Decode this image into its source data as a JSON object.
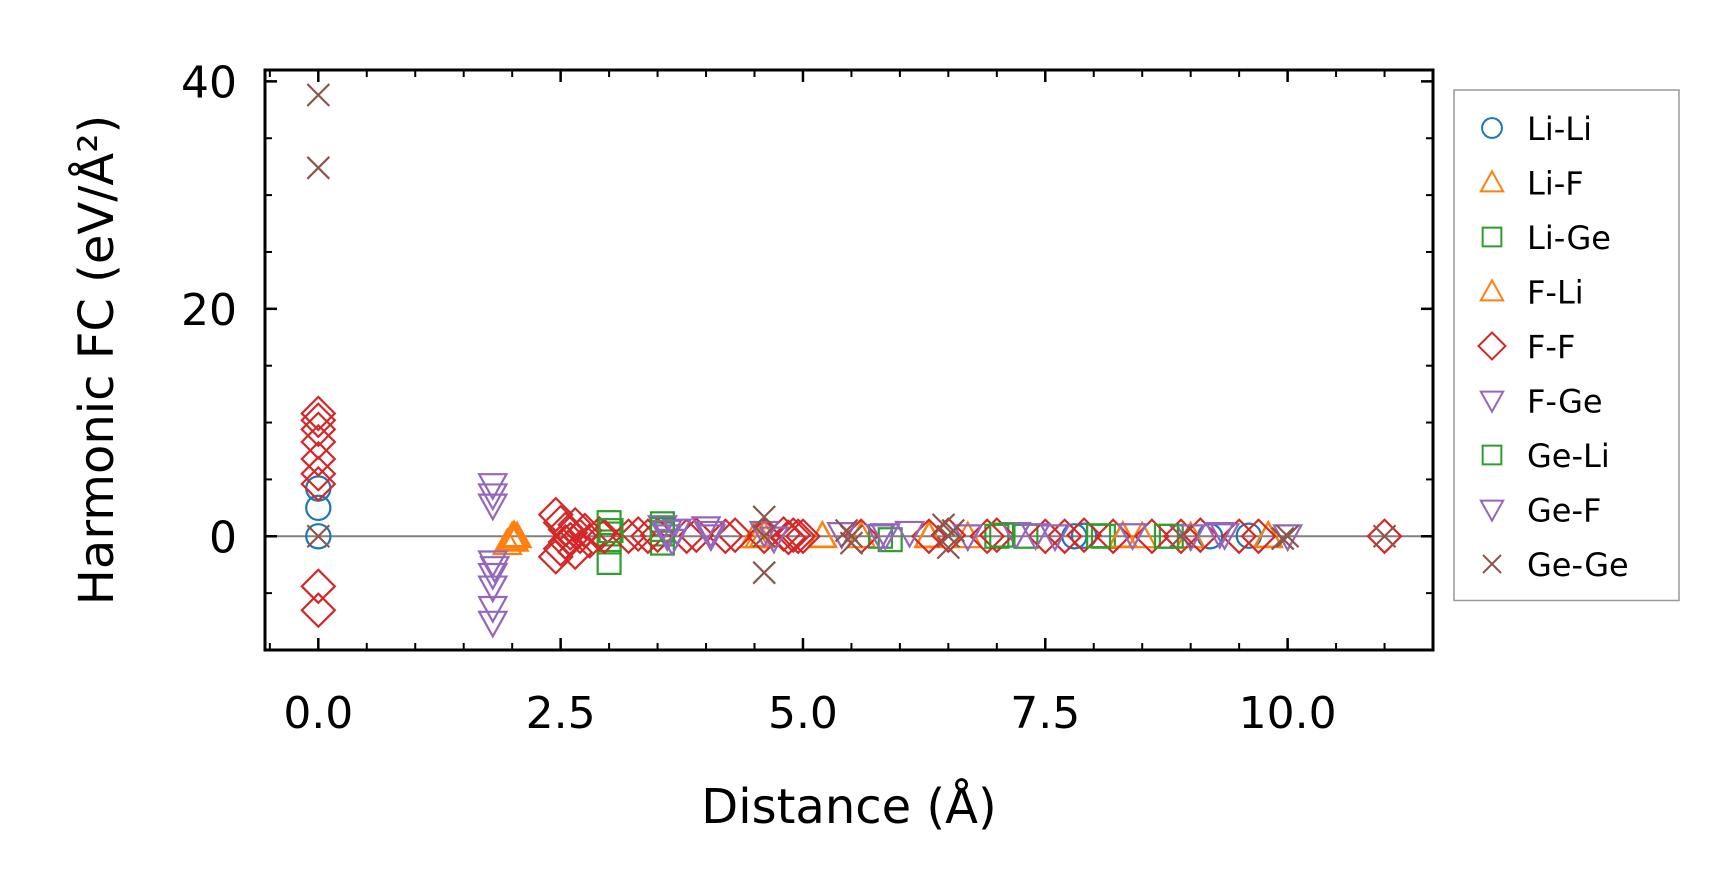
{
  "chart_data": {
    "type": "scatter",
    "title": "",
    "xlabel": "Distance (Å)",
    "ylabel": "Harmonic FC (eV/Å²)",
    "xlim": [
      -0.55,
      11.5
    ],
    "ylim": [
      -10,
      41
    ],
    "xticks": [
      0.0,
      2.5,
      5.0,
      7.5,
      10.0
    ],
    "xtick_labels": [
      "0.0",
      "2.5",
      "5.0",
      "7.5",
      "10.0"
    ],
    "yticks": [
      0,
      20,
      40
    ],
    "ytick_labels": [
      "0",
      "20",
      "40"
    ],
    "grid": false,
    "legend_position": "outside-right",
    "reference_line_y": 0,
    "series": [
      {
        "name": "Li-Li",
        "marker": "circle",
        "color": "#1f77b4",
        "points": [
          [
            0,
            0
          ],
          [
            0,
            2.5
          ],
          [
            0,
            4.2
          ],
          [
            7.8,
            0
          ],
          [
            7.9,
            0.05
          ],
          [
            9.2,
            0
          ],
          [
            9.6,
            0.05
          ]
        ]
      },
      {
        "name": "Li-F",
        "marker": "triangle-up",
        "color": "#ff7f0e",
        "points": [
          [
            1.95,
            -0.6
          ],
          [
            2.0,
            0
          ],
          [
            2.02,
            -0.3
          ],
          [
            2.05,
            0
          ],
          [
            4.5,
            0
          ],
          [
            4.6,
            0.1
          ],
          [
            5.2,
            0
          ],
          [
            5.6,
            0
          ],
          [
            6.3,
            0
          ],
          [
            6.7,
            0
          ],
          [
            8.3,
            0
          ],
          [
            8.5,
            0
          ],
          [
            9.0,
            0
          ],
          [
            9.8,
            0
          ]
        ]
      },
      {
        "name": "Li-Ge",
        "marker": "square",
        "color": "#2ca02c",
        "points": [
          [
            3.0,
            1.2
          ],
          [
            3.0,
            -0.5
          ],
          [
            3.0,
            -2.3
          ],
          [
            3.0,
            0.2
          ],
          [
            3.55,
            1.1
          ],
          [
            3.55,
            -0.6
          ],
          [
            3.55,
            0.2
          ],
          [
            5.8,
            0
          ],
          [
            5.9,
            -0.3
          ],
          [
            7.0,
            0
          ],
          [
            7.3,
            0
          ],
          [
            8.1,
            0
          ],
          [
            8.8,
            0
          ]
        ]
      },
      {
        "name": "F-Li",
        "marker": "triangle-up",
        "color": "#ff7f0e",
        "points": [
          [
            2.0,
            -0.2
          ],
          [
            2.02,
            0.1
          ],
          [
            4.55,
            0
          ],
          [
            5.2,
            0.05
          ],
          [
            6.3,
            0.05
          ],
          [
            8.3,
            0.05
          ],
          [
            9.8,
            0.05
          ]
        ]
      },
      {
        "name": "F-F",
        "marker": "diamond",
        "color": "#d62728",
        "points": [
          [
            0,
            10.8
          ],
          [
            0,
            10.2
          ],
          [
            0,
            9.4
          ],
          [
            0,
            8.3
          ],
          [
            0,
            6.8
          ],
          [
            0,
            5.5
          ],
          [
            0,
            4.6
          ],
          [
            0,
            -4.4
          ],
          [
            0,
            -6.5
          ],
          [
            2.45,
            1.9
          ],
          [
            2.45,
            -1.8
          ],
          [
            2.5,
            1.2
          ],
          [
            2.5,
            -1.1
          ],
          [
            2.55,
            0.6
          ],
          [
            2.55,
            -0.5
          ],
          [
            2.6,
            0.3
          ],
          [
            2.6,
            -0.3
          ],
          [
            2.65,
            1.0
          ],
          [
            2.65,
            -1.4
          ],
          [
            2.7,
            0
          ],
          [
            2.75,
            0.5
          ],
          [
            2.8,
            -0.4
          ],
          [
            2.9,
            0.2
          ],
          [
            2.95,
            0
          ],
          [
            3.2,
            0
          ],
          [
            3.3,
            0.2
          ],
          [
            3.4,
            0
          ],
          [
            3.5,
            0.1
          ],
          [
            3.8,
            0
          ],
          [
            3.9,
            0.1
          ],
          [
            4.2,
            0
          ],
          [
            4.3,
            0.1
          ],
          [
            4.6,
            0
          ],
          [
            4.8,
            0.2
          ],
          [
            4.85,
            -0.1
          ],
          [
            4.9,
            0.1
          ],
          [
            4.95,
            0
          ],
          [
            5.0,
            0
          ],
          [
            5.6,
            0
          ],
          [
            6.3,
            0
          ],
          [
            6.5,
            0.1
          ],
          [
            6.9,
            0
          ],
          [
            7.0,
            0.1
          ],
          [
            7.5,
            0
          ],
          [
            7.7,
            0
          ],
          [
            7.9,
            0.1
          ],
          [
            8.2,
            0
          ],
          [
            8.6,
            0
          ],
          [
            8.9,
            0
          ],
          [
            9.1,
            0.1
          ],
          [
            9.5,
            0
          ],
          [
            9.7,
            0
          ],
          [
            11.0,
            0
          ]
        ]
      },
      {
        "name": "F-Ge",
        "marker": "triangle-down",
        "color": "#9467bd",
        "points": [
          [
            1.8,
            4.5
          ],
          [
            1.8,
            3.6
          ],
          [
            1.8,
            2.7
          ],
          [
            1.8,
            -2.3
          ],
          [
            1.8,
            -3.4
          ],
          [
            1.8,
            -4.5
          ],
          [
            1.8,
            -6.3
          ],
          [
            1.8,
            -7.6
          ],
          [
            3.55,
            0.8
          ],
          [
            3.6,
            0
          ],
          [
            3.65,
            -0.4
          ],
          [
            3.7,
            0.5
          ],
          [
            4.0,
            0.7
          ],
          [
            4.05,
            0
          ],
          [
            4.6,
            0.3
          ],
          [
            4.7,
            -0.2
          ],
          [
            5.4,
            0.2
          ],
          [
            5.8,
            0
          ],
          [
            6.1,
            0.3
          ],
          [
            6.7,
            0
          ],
          [
            7.2,
            0.2
          ],
          [
            7.6,
            0
          ],
          [
            8.4,
            0.1
          ],
          [
            9.0,
            0
          ],
          [
            9.3,
            0.2
          ],
          [
            10.0,
            0
          ]
        ]
      },
      {
        "name": "Ge-Li",
        "marker": "square",
        "color": "#2ca02c",
        "points": [
          [
            3.02,
            0.5
          ],
          [
            3.55,
            0.6
          ],
          [
            7.05,
            0.1
          ],
          [
            8.05,
            0.05
          ],
          [
            8.75,
            0
          ]
        ]
      },
      {
        "name": "Ge-F",
        "marker": "triangle-down",
        "color": "#9467bd",
        "points": [
          [
            1.82,
            -2.8
          ],
          [
            3.6,
            0.4
          ],
          [
            4.05,
            0.3
          ],
          [
            5.85,
            0.1
          ],
          [
            7.4,
            0.1
          ],
          [
            9.35,
            0.1
          ]
        ]
      },
      {
        "name": "Ge-Ge",
        "marker": "x",
        "color": "#8c564b",
        "points": [
          [
            0,
            38.8
          ],
          [
            0,
            32.4
          ],
          [
            0,
            0
          ],
          [
            4.6,
            1.7
          ],
          [
            4.6,
            -3.2
          ],
          [
            4.6,
            0
          ],
          [
            5.45,
            0.5
          ],
          [
            5.5,
            -0.6
          ],
          [
            5.5,
            0
          ],
          [
            6.45,
            1.0
          ],
          [
            6.5,
            -1.0
          ],
          [
            6.5,
            0
          ],
          [
            6.55,
            0.5
          ],
          [
            8.9,
            0
          ],
          [
            9.95,
            -0.2
          ],
          [
            10.0,
            0
          ],
          [
            11.0,
            0
          ]
        ]
      }
    ]
  }
}
